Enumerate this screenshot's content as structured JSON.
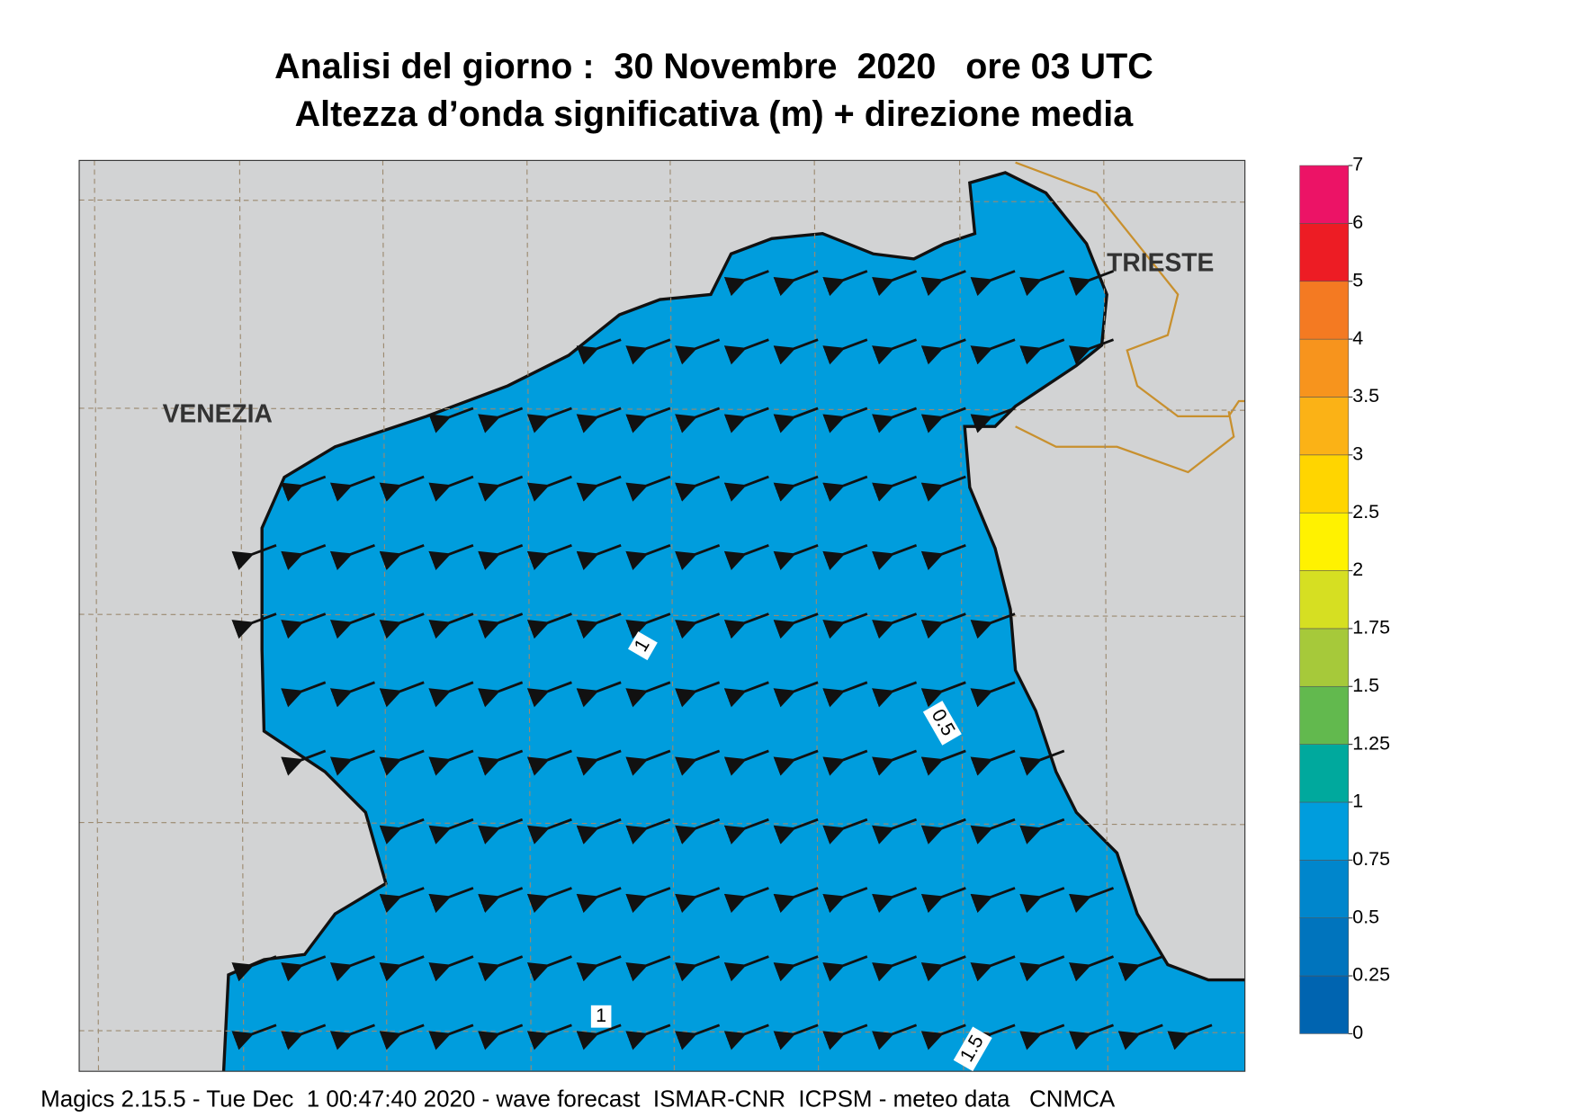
{
  "header": {
    "title": "Analisi del giorno :  30 Novembre  2020   ore 03 UTC",
    "subtitle": "Altezza d’onda significativa (m) + direzione media"
  },
  "places": [
    "VENEZIA",
    "TRIESTE"
  ],
  "contour_labels": [
    "1",
    "0.5",
    "1",
    "1.5"
  ],
  "legend": {
    "levels": [
      0,
      0.25,
      0.5,
      0.75,
      1,
      1.25,
      1.5,
      1.75,
      2,
      2.5,
      3,
      3.5,
      4,
      5,
      6,
      7
    ],
    "colors": [
      "#0064b0",
      "#0074bd",
      "#0086cc",
      "#009ddd",
      "#00a99d",
      "#62b94e",
      "#a6c93a",
      "#d6df22",
      "#fff200",
      "#ffd500",
      "#fbb216",
      "#f7941d",
      "#f47a22",
      "#ed1c24",
      "#ec1366"
    ]
  },
  "footer": "Magics 2.15.5 - Tue Dec  1 00:47:40 2020 - wave forecast  ISMAR-CNR  ICPSM - meteo data   CNMCA"
}
